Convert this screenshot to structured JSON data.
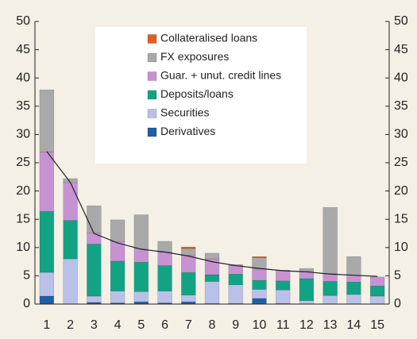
{
  "chart_data": {
    "type": "bar",
    "stacked": true,
    "categories": [
      "1",
      "2",
      "3",
      "4",
      "5",
      "6",
      "7",
      "8",
      "9",
      "10",
      "11",
      "12",
      "13",
      "14",
      "15"
    ],
    "series": [
      {
        "name": "Derivatives",
        "color": "#1f5fa8",
        "values": [
          1.4,
          0,
          0.3,
          0.2,
          0.4,
          0.2,
          0.4,
          0.1,
          0.1,
          1,
          0.1,
          0,
          0,
          0,
          0
        ]
      },
      {
        "name": "Securities",
        "color": "#b9c1e8",
        "values": [
          4.2,
          8,
          1.1,
          2.1,
          1.8,
          2.1,
          1.2,
          3.9,
          3.3,
          1.6,
          2.4,
          0.6,
          1.5,
          1.7,
          1.4
        ]
      },
      {
        "name": "Deposits/loans",
        "color": "#12a384",
        "values": [
          10.8,
          6.8,
          9.2,
          5.3,
          5.2,
          4.5,
          4,
          1.2,
          1.9,
          1.6,
          1.6,
          3.9,
          2.5,
          2.2,
          1.8
        ]
      },
      {
        "name": "Guar. + unut. credit lines",
        "color": "#c792d2",
        "values": [
          10.5,
          6.7,
          2,
          3.4,
          2.4,
          2.4,
          3,
          2.8,
          1.5,
          2,
          1.9,
          1.3,
          1.4,
          1.2,
          1.6
        ]
      },
      {
        "name": "FX exposures",
        "color": "#a9a9a9",
        "values": [
          11,
          0.7,
          4.8,
          3.9,
          6,
          1.9,
          1.2,
          1,
          0.2,
          2,
          0,
          0.5,
          11.7,
          3.3,
          0
        ]
      },
      {
        "name": "Collateralised loans",
        "color": "#e0601e",
        "values": [
          0,
          0,
          0,
          0,
          0,
          0,
          0.3,
          0,
          0,
          0.2,
          0,
          0,
          0,
          0,
          0
        ]
      }
    ],
    "line": {
      "color": "#222222",
      "values": [
        27,
        21.5,
        12.5,
        10.8,
        9.7,
        9.2,
        8.5,
        7.5,
        6.8,
        6.3,
        5.9,
        5.7,
        5.3,
        5.1,
        4.9
      ]
    },
    "ylim": [
      0,
      50
    ],
    "yticks": [
      0,
      5,
      10,
      15,
      20,
      25,
      30,
      35,
      40,
      45,
      50
    ],
    "y2lim": [
      0,
      50
    ],
    "y2ticks": [
      0,
      5,
      10,
      15,
      20,
      25,
      30,
      35,
      40,
      45,
      50
    ]
  }
}
